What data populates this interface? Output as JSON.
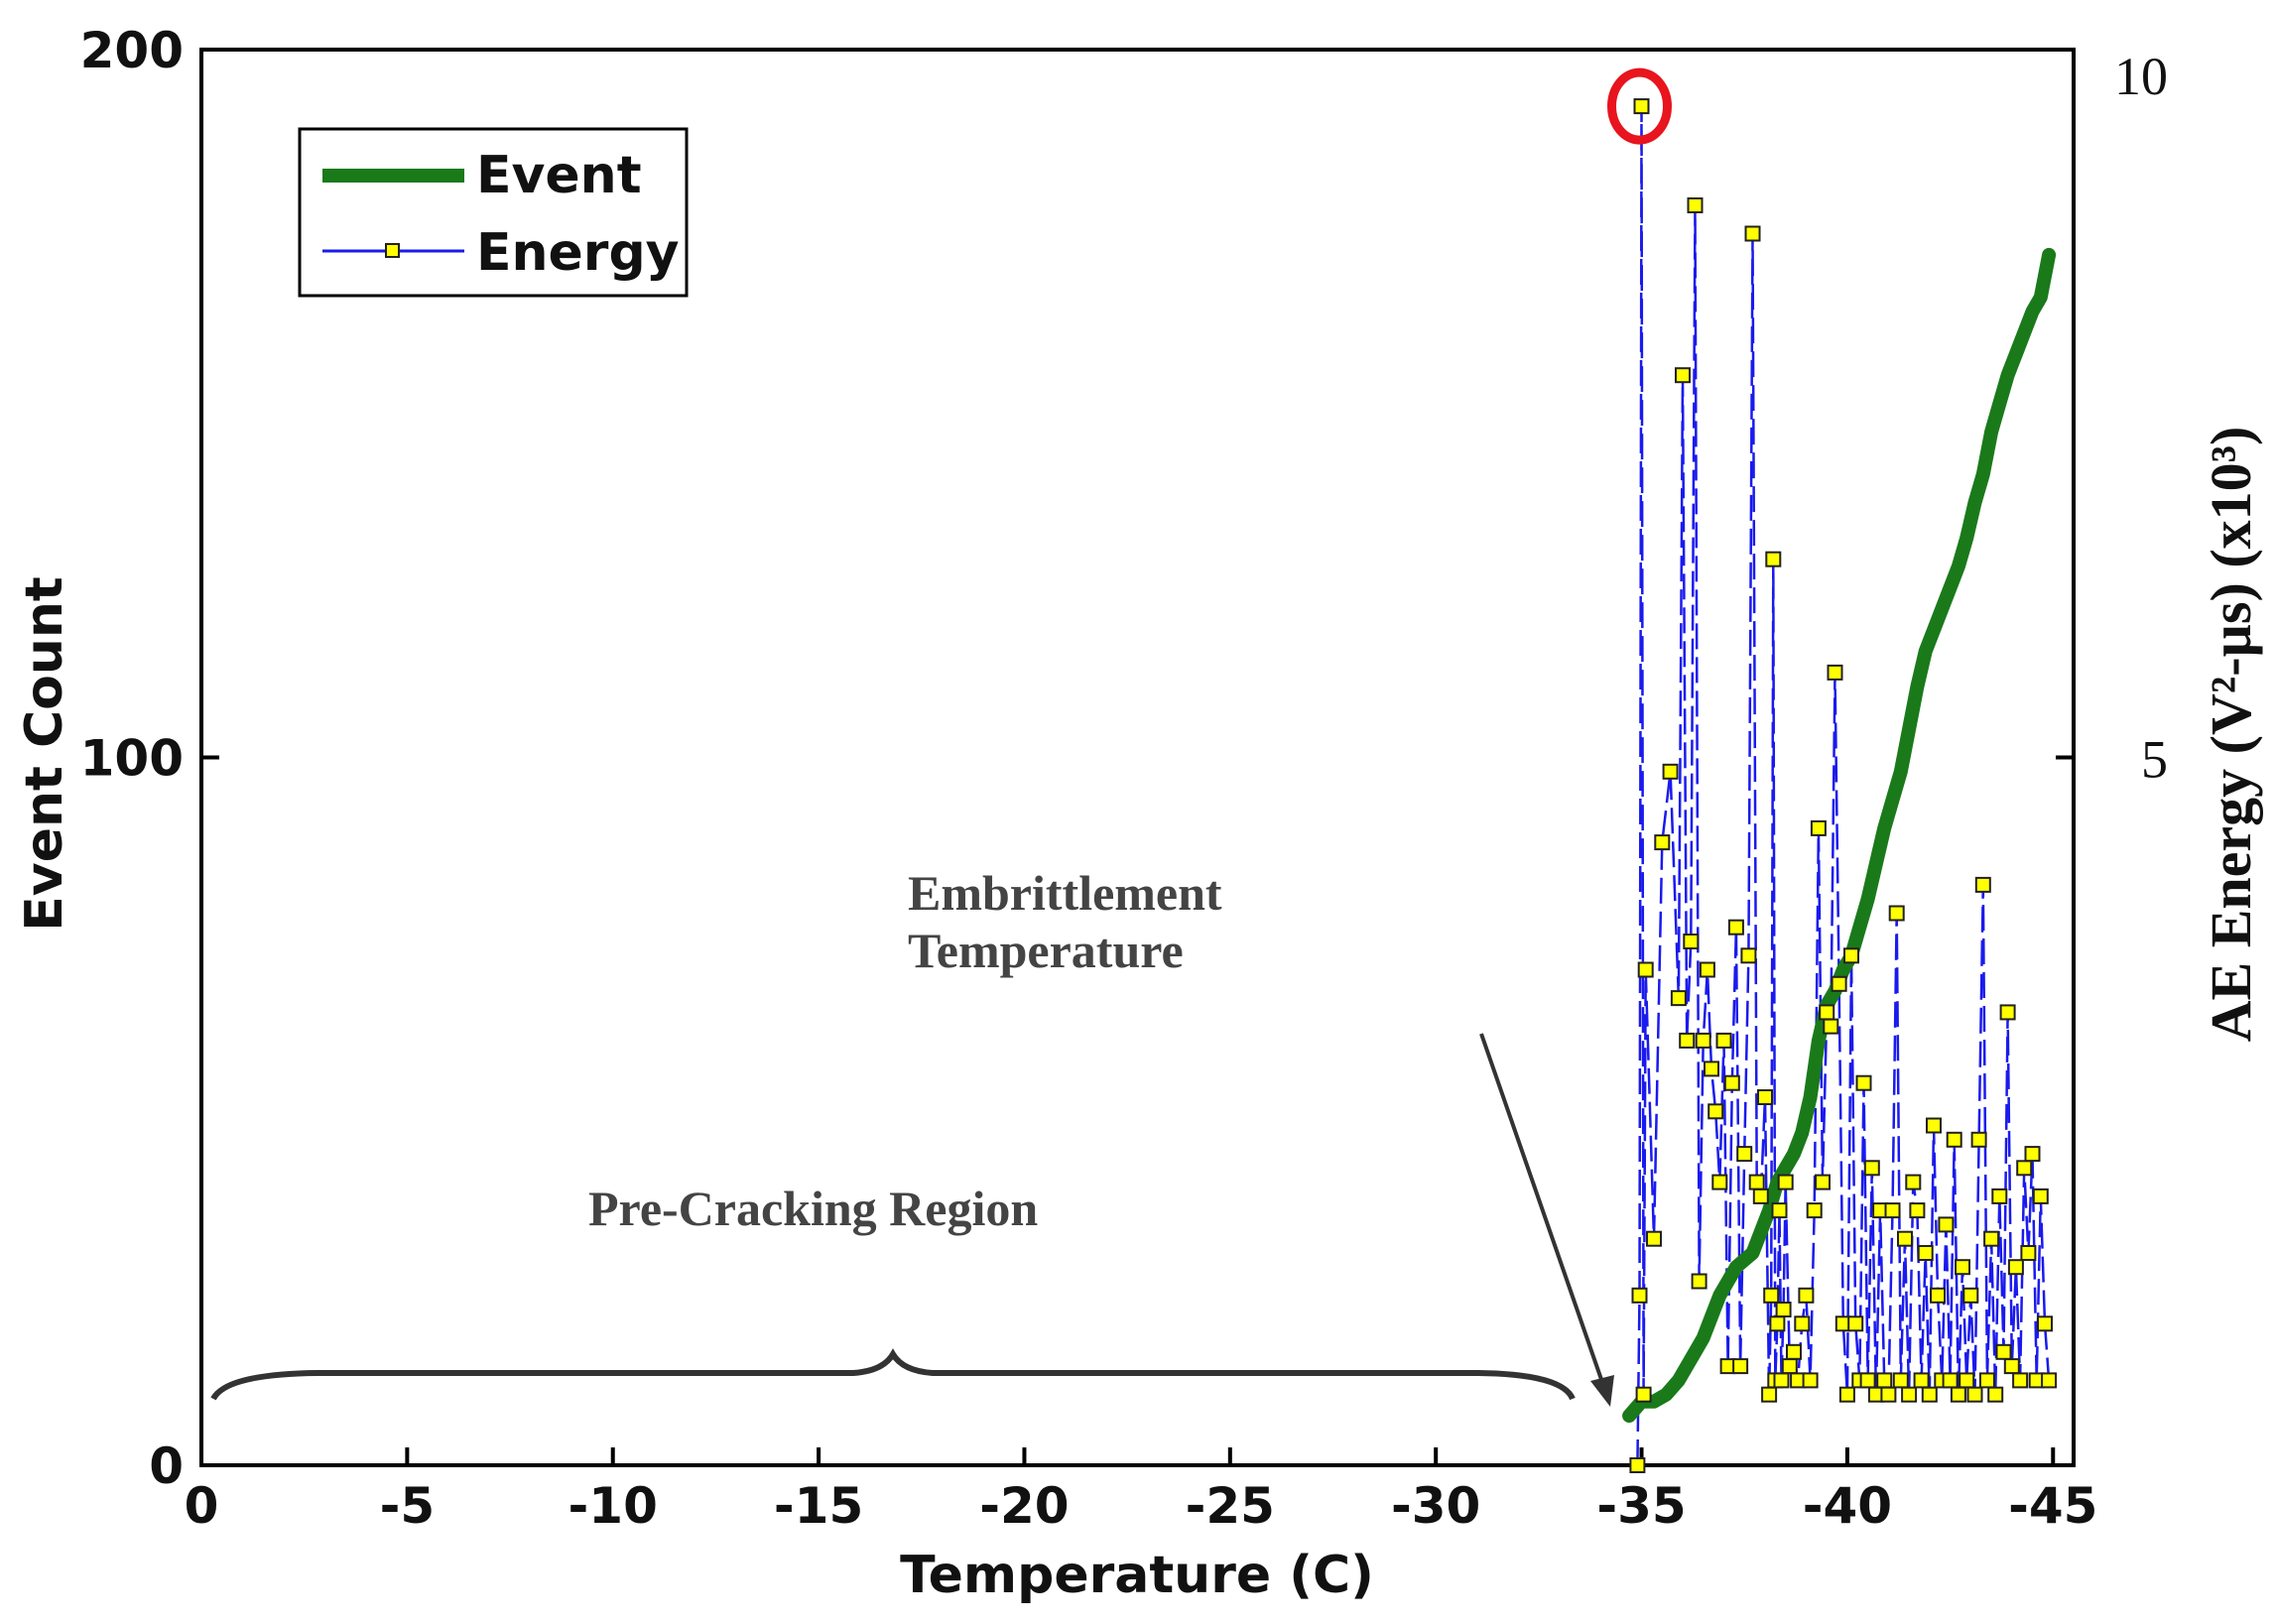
{
  "chart_data": {
    "type": "line",
    "xlabel": "Temperature (C)",
    "ylabel": "Event Count",
    "y2label": "AE Energy (V²-µs) (x10³)",
    "xlim": [
      0,
      -45.5
    ],
    "ylim": [
      0,
      200
    ],
    "y2lim": [
      0,
      10
    ],
    "x_ticks": [
      0,
      -5,
      -10,
      -15,
      -20,
      -25,
      -30,
      -35,
      -40,
      -45
    ],
    "x_tick_labels": [
      "0",
      "-5",
      "-10",
      "-15",
      "-20",
      "-25",
      "-30",
      "-35",
      "-40",
      "-45"
    ],
    "y_ticks": [
      0,
      100,
      200
    ],
    "y_tick_labels": [
      "0",
      "100",
      "200"
    ],
    "y2_ticks": [
      5,
      10
    ],
    "y2_tick_labels": [
      "5",
      "10"
    ],
    "legend": {
      "position": "top-left",
      "entries": [
        "Event",
        "Energy"
      ]
    },
    "colors": {
      "event": "#1a7a1a",
      "energy": "#1a1aee",
      "marker_fill": "#ffff00",
      "highlight": "#e8141e",
      "annotation": "#333333"
    },
    "annotations": {
      "embrittlement": [
        "Embrittlement",
        "Temperature"
      ],
      "embrittlement_arrow_target": {
        "x": -34.7,
        "y": 10
      },
      "pre_cracking": "Pre-Cracking Region",
      "pre_cracking_range": [
        -0.3,
        -33.7
      ],
      "highlight_point": {
        "x": -34.95,
        "y2": 9.6
      }
    },
    "series": [
      {
        "name": "Event",
        "axis": "left",
        "x": [
          -34.7,
          -34.85,
          -35.0,
          -35.3,
          -35.6,
          -35.9,
          -36.1,
          -36.3,
          -36.5,
          -36.7,
          -36.9,
          -37.1,
          -37.3,
          -37.5,
          -37.7,
          -37.9,
          -38.1,
          -38.3,
          -38.5,
          -38.7,
          -38.9,
          -39.1,
          -39.3,
          -39.5,
          -39.7,
          -39.9,
          -40.1,
          -40.3,
          -40.5,
          -40.7,
          -40.9,
          -41.1,
          -41.3,
          -41.5,
          -41.7,
          -41.9,
          -42.1,
          -42.3,
          -42.5,
          -42.7,
          -42.9,
          -43.1,
          -43.3,
          -43.5,
          -43.7,
          -43.9,
          -44.1,
          -44.3,
          -44.5,
          -44.7,
          -44.9
        ],
        "values": [
          7,
          8,
          9,
          9,
          10,
          12,
          14,
          16,
          18,
          21,
          24,
          26,
          28,
          29,
          30,
          33,
          36,
          40,
          42,
          44,
          47,
          52,
          60,
          65,
          67,
          70,
          72,
          76,
          80,
          85,
          90,
          94,
          98,
          104,
          110,
          115,
          118,
          121,
          124,
          127,
          131,
          136,
          140,
          146,
          150,
          154,
          157,
          160,
          163,
          165,
          171
        ]
      },
      {
        "name": "Energy",
        "axis": "right",
        "x": [
          -34.9,
          -34.95,
          -35.0,
          -35.05,
          -35.1,
          -35.3,
          -35.5,
          -35.7,
          -35.9,
          -36.0,
          -36.1,
          -36.2,
          -36.3,
          -36.4,
          -36.5,
          -36.6,
          -36.7,
          -36.8,
          -36.9,
          -37.0,
          -37.1,
          -37.2,
          -37.3,
          -37.4,
          -37.5,
          -37.6,
          -37.7,
          -37.8,
          -37.9,
          -38.0,
          -38.1,
          -38.15,
          -38.2,
          -38.25,
          -38.3,
          -38.35,
          -38.4,
          -38.45,
          -38.5,
          -38.6,
          -38.7,
          -38.8,
          -38.9,
          -39.0,
          -39.1,
          -39.2,
          -39.3,
          -39.4,
          -39.5,
          -39.6,
          -39.7,
          -39.8,
          -39.9,
          -40.0,
          -40.1,
          -40.2,
          -40.3,
          -40.4,
          -40.5,
          -40.6,
          -40.7,
          -40.8,
          -40.9,
          -41.0,
          -41.1,
          -41.2,
          -41.3,
          -41.4,
          -41.5,
          -41.6,
          -41.7,
          -41.8,
          -41.9,
          -42.0,
          -42.1,
          -42.2,
          -42.3,
          -42.4,
          -42.5,
          -42.6,
          -42.7,
          -42.8,
          -42.9,
          -43.0,
          -43.1,
          -43.2,
          -43.3,
          -43.4,
          -43.5,
          -43.6,
          -43.7,
          -43.8,
          -43.9,
          -44.0,
          -44.1,
          -44.2,
          -44.3,
          -44.4,
          -44.5,
          -44.6,
          -44.7,
          -44.8,
          -44.9
        ],
        "values": [
          0.0,
          1.2,
          9.6,
          0.5,
          3.5,
          1.6,
          4.4,
          4.9,
          3.3,
          7.7,
          3.0,
          3.7,
          8.9,
          1.3,
          3.0,
          3.5,
          2.8,
          2.5,
          2.0,
          3.0,
          0.7,
          2.7,
          3.8,
          0.7,
          2.2,
          3.6,
          8.7,
          2.0,
          1.9,
          2.6,
          0.5,
          1.2,
          6.4,
          0.6,
          1.0,
          1.8,
          0.6,
          1.1,
          2.0,
          0.7,
          0.8,
          0.6,
          1.0,
          1.2,
          0.6,
          1.8,
          4.5,
          2.0,
          3.2,
          3.1,
          5.6,
          3.4,
          1.0,
          0.5,
          3.6,
          1.0,
          0.6,
          2.7,
          0.6,
          2.1,
          0.5,
          1.8,
          0.6,
          0.5,
          1.8,
          3.9,
          0.6,
          1.6,
          0.5,
          2.0,
          1.8,
          0.6,
          1.5,
          0.5,
          2.4,
          1.2,
          0.6,
          1.7,
          0.6,
          2.3,
          0.5,
          1.4,
          0.6,
          1.2,
          0.5,
          2.3,
          4.1,
          0.6,
          1.6,
          0.5,
          1.9,
          0.8,
          3.2,
          0.7,
          1.4,
          0.6,
          2.1,
          1.5,
          2.2,
          0.6,
          1.9,
          1.0,
          0.6
        ]
      }
    ]
  }
}
